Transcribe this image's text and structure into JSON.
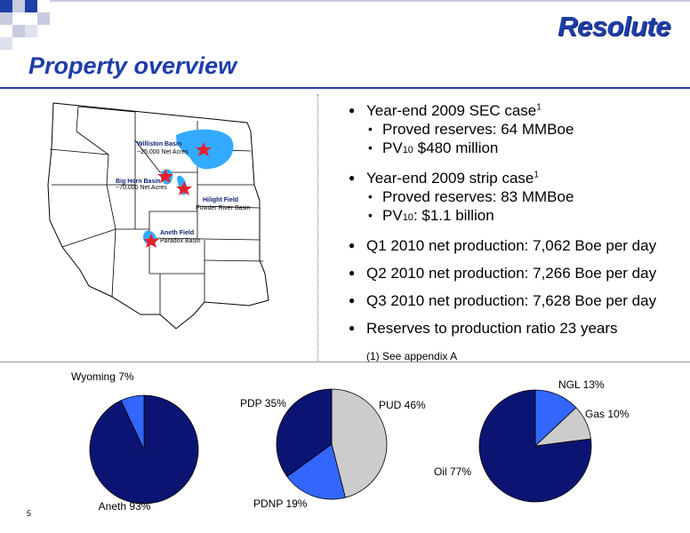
{
  "header": {
    "logo_text": "Resolute",
    "title": "Property overview",
    "page_number": "5",
    "colors": {
      "title": "#1e3ea8",
      "deco_blue": "#1e3ea8",
      "deco_gray": "#c8cbe0"
    }
  },
  "map": {
    "basins": [
      {
        "name": "Williston Basin",
        "detail": "~25,000 Net Acres"
      },
      {
        "name": "Big Horn Basin",
        "detail": "~70,000 Net Acres"
      },
      {
        "name": "Hilight Field",
        "detail": "Powder River Basin"
      },
      {
        "name": "Aneth Field",
        "detail": "Paradox Basin"
      }
    ],
    "colors": {
      "basin_fill": "#33aaff",
      "star": "#e8202a",
      "label": "#0c1f73"
    }
  },
  "bullets": {
    "sec_case": {
      "text": "Year-end 2009 SEC case",
      "sup": "1"
    },
    "sec_items": [
      {
        "pre": "Proved reserves:  64 MMBoe"
      },
      {
        "pre": "PV",
        "sub": "10",
        "post": " $480 million"
      }
    ],
    "strip_case": {
      "text": "Year-end 2009 strip case",
      "sup": "1"
    },
    "strip_items": [
      {
        "pre": "Proved reserves:  83 MMBoe"
      },
      {
        "pre": "PV",
        "sub": "10",
        "post": ":  $1.1 billion"
      }
    ],
    "production": [
      "Q1 2010 net production: 7,062 Boe per day",
      "Q2 2010 net production: 7,266 Boe per day",
      "Q3 2010 net production: 7,628 Boe per day",
      "Reserves to production ratio 23 years"
    ],
    "footnote": "(1) See appendix A"
  },
  "chart_data": [
    {
      "type": "pie",
      "slices": [
        {
          "label": "Aneth 93%",
          "value": 93,
          "color": "#0c1473"
        },
        {
          "label": "Wyoming 7%",
          "value": 7,
          "color": "#3366ff"
        }
      ]
    },
    {
      "type": "pie",
      "slices": [
        {
          "label": "PUD 46%",
          "value": 46,
          "color": "#cccccc"
        },
        {
          "label": "PDNP 19%",
          "value": 19,
          "color": "#3366ff"
        },
        {
          "label": "PDP 35%",
          "value": 35,
          "color": "#0c1473"
        }
      ]
    },
    {
      "type": "pie",
      "slices": [
        {
          "label": "NGL 13%",
          "value": 13,
          "color": "#3366ff"
        },
        {
          "label": "Gas 10%",
          "value": 10,
          "color": "#cccccc"
        },
        {
          "label": "Oil 77%",
          "value": 77,
          "color": "#0c1473"
        }
      ]
    }
  ]
}
